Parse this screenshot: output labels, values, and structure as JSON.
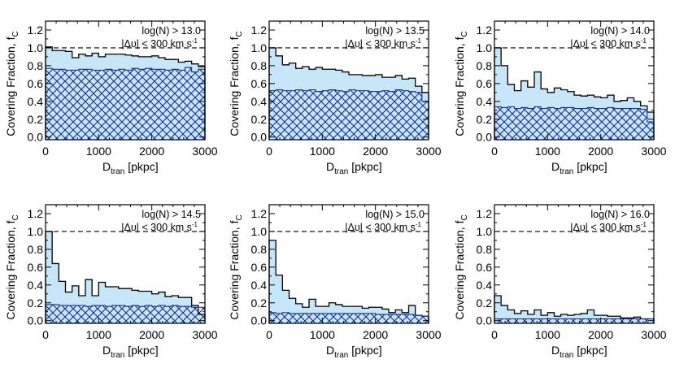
{
  "figure": {
    "ylabel_main": "Covering Fraction, f",
    "ylabel_sub": "C",
    "xlabel_main": "D",
    "xlabel_sub": "tran",
    "xlabel_unit": " [pkpc]",
    "velocity_label": "|Δυ| < 300 km s",
    "velocity_sup": "-1"
  },
  "style": {
    "fill_color": "#c6e6fa",
    "hatch_color": "#1a2f8a",
    "line_color": "#000000",
    "reference_line_value": 1.0
  },
  "chart_data": [
    {
      "type": "bar",
      "title": "log(N) > 13.0",
      "xlabel": "D_tran [pkpc]",
      "ylabel": "Covering Fraction, f_C",
      "xlim": [
        0,
        3000
      ],
      "ylim": [
        -0.03,
        1.3
      ],
      "xticks": [
        0,
        1000,
        2000,
        3000
      ],
      "yticks": [
        0.0,
        0.2,
        0.4,
        0.6,
        0.8,
        1.0,
        1.2
      ],
      "bin_width": 125,
      "series": [
        {
          "values": [
            1.01,
            0.97,
            0.97,
            0.96,
            0.89,
            0.93,
            0.91,
            0.94,
            0.9,
            0.93,
            0.93,
            0.93,
            0.92,
            0.91,
            0.9,
            0.9,
            0.91,
            0.89,
            0.87,
            0.87,
            0.84,
            0.85,
            0.82,
            0.79
          ]
        },
        {
          "values": [
            0.77,
            0.76,
            0.76,
            0.75,
            0.75,
            0.76,
            0.76,
            0.75,
            0.75,
            0.76,
            0.75,
            0.76,
            0.75,
            0.77,
            0.76,
            0.77,
            0.76,
            0.76,
            0.75,
            0.76,
            0.75,
            0.78,
            0.73,
            0.76
          ]
        }
      ]
    },
    {
      "type": "bar",
      "title": "log(N) > 13.5",
      "xlabel": "D_tran [pkpc]",
      "ylabel": "Covering Fraction, f_C",
      "xlim": [
        0,
        3000
      ],
      "ylim": [
        -0.03,
        1.3
      ],
      "xticks": [
        0,
        1000,
        2000,
        3000
      ],
      "yticks": [
        0.0,
        0.2,
        0.4,
        0.6,
        0.8,
        1.0,
        1.2
      ],
      "bin_width": 125,
      "series": [
        {
          "values": [
            1.0,
            0.91,
            0.81,
            0.83,
            0.77,
            0.79,
            0.76,
            0.78,
            0.76,
            0.76,
            0.75,
            0.73,
            0.7,
            0.7,
            0.69,
            0.69,
            0.7,
            0.67,
            0.67,
            0.69,
            0.65,
            0.66,
            0.57,
            0.5
          ]
        },
        {
          "values": [
            0.52,
            0.53,
            0.52,
            0.52,
            0.53,
            0.52,
            0.53,
            0.51,
            0.52,
            0.53,
            0.52,
            0.51,
            0.53,
            0.52,
            0.52,
            0.51,
            0.51,
            0.52,
            0.51,
            0.53,
            0.52,
            0.51,
            0.5,
            0.4
          ]
        }
      ]
    },
    {
      "type": "bar",
      "title": "log(N) > 14.0",
      "xlabel": "D_tran [pkpc]",
      "ylabel": "Covering Fraction, f_C",
      "xlim": [
        0,
        3000
      ],
      "ylim": [
        -0.03,
        1.3
      ],
      "xticks": [
        0,
        1000,
        2000,
        3000
      ],
      "yticks": [
        0.0,
        0.2,
        0.4,
        0.6,
        0.8,
        1.0,
        1.2
      ],
      "bin_width": 125,
      "series": [
        {
          "values": [
            1.0,
            0.8,
            0.59,
            0.52,
            0.63,
            0.56,
            0.73,
            0.54,
            0.5,
            0.55,
            0.53,
            0.51,
            0.47,
            0.46,
            0.47,
            0.45,
            0.44,
            0.47,
            0.4,
            0.41,
            0.44,
            0.4,
            0.35,
            0.28
          ]
        },
        {
          "values": [
            0.34,
            0.33,
            0.34,
            0.32,
            0.33,
            0.32,
            0.34,
            0.32,
            0.33,
            0.32,
            0.33,
            0.33,
            0.32,
            0.32,
            0.33,
            0.32,
            0.32,
            0.33,
            0.32,
            0.32,
            0.32,
            0.32,
            0.31,
            0.17
          ]
        }
      ]
    },
    {
      "type": "bar",
      "title": "log(N) > 14.5",
      "xlabel": "D_tran [pkpc]",
      "ylabel": "Covering Fraction, f_C",
      "xlim": [
        0,
        3000
      ],
      "ylim": [
        -0.03,
        1.3
      ],
      "xticks": [
        0,
        1000,
        2000,
        3000
      ],
      "yticks": [
        0.0,
        0.2,
        0.4,
        0.6,
        0.8,
        1.0,
        1.2
      ],
      "bin_width": 125,
      "series": [
        {
          "values": [
            1.0,
            0.64,
            0.44,
            0.32,
            0.39,
            0.28,
            0.46,
            0.28,
            0.43,
            0.38,
            0.38,
            0.36,
            0.36,
            0.34,
            0.33,
            0.33,
            0.3,
            0.32,
            0.27,
            0.28,
            0.26,
            0.26,
            0.17,
            0.07
          ]
        },
        {
          "values": [
            0.18,
            0.18,
            0.17,
            0.17,
            0.17,
            0.17,
            0.16,
            0.17,
            0.17,
            0.16,
            0.17,
            0.17,
            0.16,
            0.17,
            0.16,
            0.17,
            0.16,
            0.17,
            0.16,
            0.17,
            0.16,
            0.16,
            0.15,
            0.15
          ]
        }
      ]
    },
    {
      "type": "bar",
      "title": "log(N) > 15.0",
      "xlabel": "D_tran [pkpc]",
      "ylabel": "Covering Fraction, f_C",
      "xlim": [
        0,
        3000
      ],
      "ylim": [
        -0.03,
        1.3
      ],
      "xticks": [
        0,
        1000,
        2000,
        3000
      ],
      "yticks": [
        0.0,
        0.2,
        0.4,
        0.6,
        0.8,
        1.0,
        1.2
      ],
      "bin_width": 125,
      "series": [
        {
          "values": [
            0.9,
            0.51,
            0.34,
            0.25,
            0.19,
            0.15,
            0.24,
            0.16,
            0.16,
            0.2,
            0.18,
            0.16,
            0.16,
            0.16,
            0.14,
            0.15,
            0.15,
            0.13,
            0.09,
            0.12,
            0.09,
            0.17,
            0.06,
            0.05
          ]
        },
        {
          "values": [
            0.09,
            0.08,
            0.09,
            0.08,
            0.08,
            0.08,
            0.08,
            0.08,
            0.08,
            0.08,
            0.08,
            0.08,
            0.08,
            0.08,
            0.08,
            0.08,
            0.07,
            0.07,
            0.07,
            0.07,
            0.07,
            0.07,
            0.06,
            0.05
          ]
        }
      ]
    },
    {
      "type": "bar",
      "title": "log(N) > 16.0",
      "xlabel": "D_tran [pkpc]",
      "ylabel": "Covering Fraction, f_C",
      "xlim": [
        0,
        3000
      ],
      "ylim": [
        -0.03,
        1.3
      ],
      "xticks": [
        0,
        1000,
        2000,
        3000
      ],
      "yticks": [
        0.0,
        0.2,
        0.4,
        0.6,
        0.8,
        1.0,
        1.2
      ],
      "bin_width": 125,
      "series": [
        {
          "values": [
            0.28,
            0.17,
            0.12,
            0.08,
            0.11,
            0.07,
            0.12,
            0.06,
            0.09,
            0.05,
            0.07,
            0.06,
            0.07,
            0.08,
            0.12,
            0.06,
            0.06,
            0.05,
            0.05,
            0.03,
            0.03,
            0.04,
            0.02,
            0.02
          ]
        },
        {
          "values": [
            0.02,
            0.02,
            0.02,
            0.02,
            0.02,
            0.02,
            0.02,
            0.02,
            0.02,
            0.02,
            0.02,
            0.02,
            0.02,
            0.02,
            0.02,
            0.02,
            0.02,
            0.02,
            0.02,
            0.02,
            0.02,
            0.02,
            0.02,
            0.02
          ]
        }
      ]
    }
  ]
}
